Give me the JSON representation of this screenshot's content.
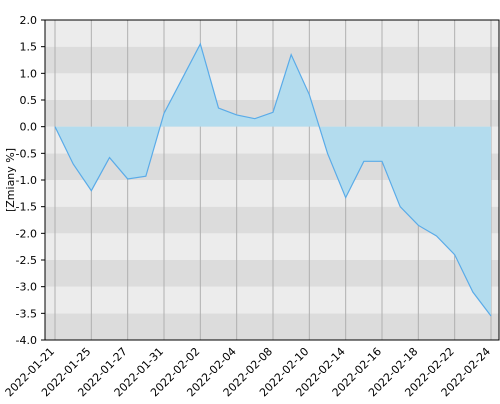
{
  "chart_data": {
    "type": "area",
    "y_label": "[Zmiany %]",
    "categories": [
      "2022-01-21",
      null,
      "2022-01-25",
      null,
      "2022-01-27",
      null,
      "2022-01-31",
      null,
      "2022-02-02",
      null,
      "2022-02-04",
      null,
      "2022-02-08",
      null,
      "2022-02-10",
      null,
      "2022-02-14",
      null,
      "2022-02-16",
      null,
      "2022-02-18",
      null,
      "2022-02-22",
      null,
      "2022-02-24"
    ],
    "values": [
      0,
      -0.7,
      -1.2,
      -0.58,
      -0.98,
      -0.93,
      0.25,
      0.9,
      1.55,
      0.35,
      0.22,
      0.15,
      0.27,
      1.35,
      0.6,
      -0.5,
      -1.33,
      -0.65,
      -0.65,
      -1.5,
      -1.85,
      -2.05,
      -2.4,
      -3.1,
      -3.55
    ],
    "color": "#5aabe8",
    "fill": "#b3dcee",
    "ylim": [
      -4,
      2
    ],
    "yticks": [
      {
        "value": -4,
        "label": "-4.0"
      },
      -3.5,
      {
        "value": -3,
        "label": "-3.0"
      },
      -2.5,
      {
        "value": -2,
        "label": "-2.0"
      },
      -1.5,
      {
        "value": -1,
        "label": "-1.0"
      },
      -0.5,
      {
        "value": 0,
        "label": "0.0"
      },
      0.5,
      {
        "value": 1,
        "label": "1.0"
      },
      1.5,
      {
        "value": 2,
        "label": "2.0"
      }
    ],
    "grid": true
  }
}
